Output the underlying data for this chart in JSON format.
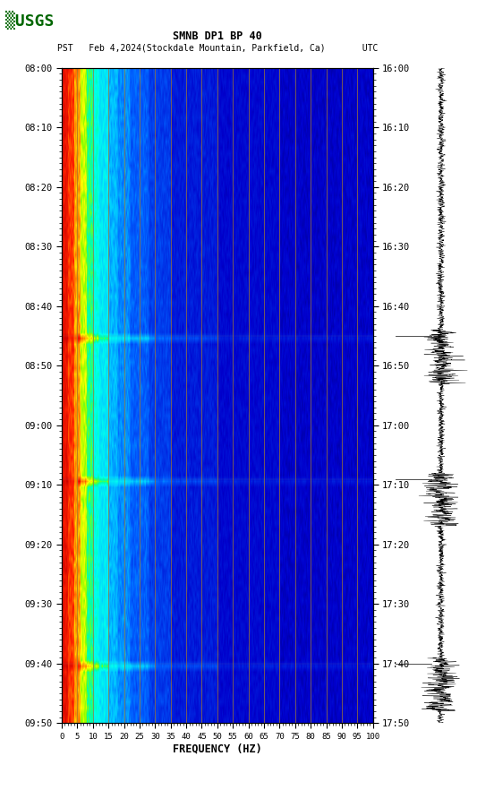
{
  "title_line1": "SMNB DP1 BP 40",
  "title_line2": "PST   Feb 4,2024(Stockdale Mountain, Parkfield, Ca)       UTC",
  "freq_label": "FREQUENCY (HZ)",
  "freq_ticks": [
    0,
    5,
    10,
    15,
    20,
    25,
    30,
    35,
    40,
    45,
    50,
    55,
    60,
    65,
    70,
    75,
    80,
    85,
    90,
    95,
    100
  ],
  "left_time_labels": [
    "08:00",
    "08:10",
    "08:20",
    "08:30",
    "08:40",
    "08:50",
    "09:00",
    "09:10",
    "09:20",
    "09:30",
    "09:40",
    "09:50"
  ],
  "right_time_labels": [
    "16:00",
    "16:10",
    "16:20",
    "16:30",
    "16:40",
    "16:50",
    "17:00",
    "17:10",
    "17:20",
    "17:30",
    "17:40",
    "17:50"
  ],
  "freq_vlines": [
    5,
    10,
    15,
    20,
    25,
    30,
    35,
    40,
    45,
    50,
    55,
    60,
    65,
    70,
    75,
    80,
    85,
    90,
    95,
    100
  ],
  "bg_color": "#ffffff",
  "vline_color": "#a07830",
  "usgs_text_color": "#006600",
  "fig_width": 5.52,
  "fig_height": 8.92,
  "dpi": 100,
  "n_time": 110,
  "n_freq": 400,
  "event1_time": 45,
  "event2_time": 69,
  "event3_time": 100,
  "horizontal_line1_time": 45,
  "horizontal_line2_time": 69,
  "horizontal_line3_time": 100
}
